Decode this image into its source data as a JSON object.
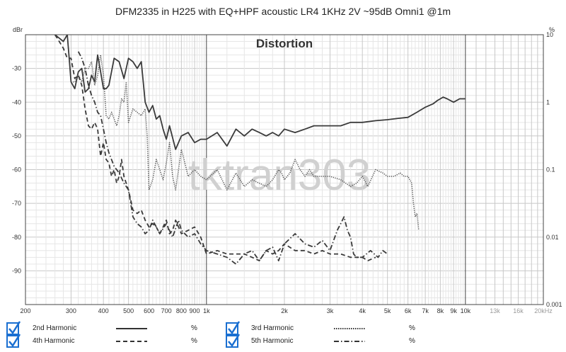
{
  "chart_data": {
    "type": "line",
    "title": "DFM2335 in H225 with EQ+HPF acoustic LR4 1KHz 2V ~95dB Omni1 @1m",
    "inner_title": "Distortion",
    "watermark": "tktran303",
    "xscale": "log",
    "xlim": [
      200,
      20000
    ],
    "ylim_left": [
      -100,
      -20
    ],
    "ylim_right": [
      0.001,
      10
    ],
    "y_left_unit": "dBr",
    "y_right_unit": "%",
    "x_tick_labels": [
      {
        "v": 200,
        "t": "200"
      },
      {
        "v": 300,
        "t": "300"
      },
      {
        "v": 400,
        "t": "400"
      },
      {
        "v": 500,
        "t": "500"
      },
      {
        "v": 600,
        "t": "600"
      },
      {
        "v": 700,
        "t": "700"
      },
      {
        "v": 800,
        "t": "800"
      },
      {
        "v": 900,
        "t": "900"
      },
      {
        "v": 1000,
        "t": "1k"
      },
      {
        "v": 2000,
        "t": "2k"
      },
      {
        "v": 3000,
        "t": "3k"
      },
      {
        "v": 4000,
        "t": "4k"
      },
      {
        "v": 5000,
        "t": "5k"
      },
      {
        "v": 6000,
        "t": "6k"
      },
      {
        "v": 7000,
        "t": "7k"
      },
      {
        "v": 8000,
        "t": "8k"
      },
      {
        "v": 9000,
        "t": "9k"
      },
      {
        "v": 10000,
        "t": "10k"
      },
      {
        "v": 13000,
        "t": "13k",
        "muted": true
      },
      {
        "v": 16000,
        "t": "16k",
        "muted": true
      },
      {
        "v": 20000,
        "t": "20kHz",
        "muted": true
      }
    ],
    "y_left_ticks": [
      {
        "v": -30,
        "t": "-30"
      },
      {
        "v": -40,
        "t": "-40"
      },
      {
        "v": -50,
        "t": "-50"
      },
      {
        "v": -60,
        "t": "-60"
      },
      {
        "v": -70,
        "t": "-70"
      },
      {
        "v": -80,
        "t": "-80"
      },
      {
        "v": -90,
        "t": "-90"
      }
    ],
    "y_right_ticks": [
      {
        "v": 10,
        "t": "10"
      },
      {
        "v": 1,
        "t": "1"
      },
      {
        "v": 0.1,
        "t": "0.1"
      },
      {
        "v": 0.01,
        "t": "0.01"
      },
      {
        "v": 0.001,
        "t": "0.001"
      }
    ],
    "series": [
      {
        "name": "2nd Harmonic",
        "unit": "%",
        "style": "solid",
        "color": "#3a3a3a",
        "x": [
          260,
          270,
          280,
          290,
          295,
          300,
          310,
          320,
          330,
          340,
          350,
          360,
          370,
          380,
          390,
          400,
          410,
          420,
          440,
          460,
          480,
          500,
          520,
          540,
          560,
          580,
          600,
          620,
          640,
          660,
          680,
          700,
          720,
          760,
          800,
          850,
          900,
          950,
          1000,
          1100,
          1200,
          1300,
          1400,
          1500,
          1600,
          1700,
          1800,
          1900,
          2000,
          2200,
          2400,
          2600,
          2800,
          3000,
          3300,
          3600,
          4000,
          4500,
          5000,
          5500,
          6000,
          6500,
          7000,
          7500,
          7800,
          8000,
          8200,
          8500,
          9000,
          9500,
          10000
        ],
        "y": [
          -20,
          -21,
          -22,
          -20,
          -27,
          -34,
          -36,
          -31,
          -30,
          -37,
          -36,
          -32,
          -34,
          -26,
          -31,
          -36,
          -36,
          -35,
          -27,
          -28,
          -33,
          -27,
          -28,
          -30,
          -28,
          -40,
          -43,
          -41,
          -45,
          -44,
          -48,
          -51,
          -47,
          -54,
          -50,
          -49,
          -52,
          -51,
          -51,
          -49,
          -53,
          -48,
          -50,
          -48,
          -49,
          -50,
          -49,
          -50,
          -48,
          -49,
          -48,
          -47,
          -47,
          -47,
          -47,
          -46,
          -46,
          -45.5,
          -45.2,
          -44.8,
          -44.5,
          -43,
          -41.5,
          -40.5,
          -39.5,
          -39,
          -38.5,
          -39,
          -40,
          -39,
          -39
        ]
      },
      {
        "name": "3rd Harmonic",
        "unit": "%",
        "style": "dotted",
        "color": "#555555",
        "x": [
          300,
          310,
          320,
          330,
          340,
          350,
          360,
          370,
          380,
          390,
          400,
          410,
          420,
          430,
          440,
          450,
          460,
          470,
          480,
          490,
          500,
          520,
          540,
          560,
          580,
          590,
          600,
          620,
          640,
          660,
          680,
          700,
          720,
          740,
          760,
          800,
          850,
          900,
          950,
          1000,
          1100,
          1200,
          1300,
          1400,
          1500,
          1600,
          1700,
          1800,
          1900,
          1950,
          2000,
          2100,
          2200,
          2300,
          2400,
          2500,
          2600,
          2700,
          2800,
          3000,
          3300,
          3600,
          3800,
          4000,
          4200,
          4500,
          4800,
          5000,
          5300,
          5600,
          5800,
          6000,
          6200,
          6300,
          6400,
          6500,
          6600
        ],
        "y": [
          -34,
          -34,
          -32,
          -34,
          -30,
          -30,
          -28,
          -35,
          -32,
          -26,
          -32,
          -44,
          -45,
          -43,
          -45,
          -47,
          -44,
          -39,
          -40,
          -34,
          -46,
          -42,
          -43,
          -44,
          -42,
          -50,
          -66,
          -63,
          -57,
          -60,
          -63,
          -58,
          -52,
          -62,
          -66,
          -54,
          -62,
          -60,
          -62,
          -63,
          -60,
          -66,
          -61,
          -65,
          -63,
          -64,
          -65,
          -63,
          -60,
          -61,
          -63,
          -61,
          -57,
          -60,
          -62,
          -60,
          -62,
          -62,
          -62,
          -62,
          -63,
          -65,
          -64,
          -62,
          -65,
          -60,
          -61,
          -62,
          -62,
          -61,
          -62,
          -62,
          -64,
          -70,
          -74,
          -73,
          -78
        ]
      },
      {
        "name": "4th Harmonic",
        "unit": "%",
        "style": "dashed",
        "color": "#3a3a3a",
        "x": [
          260,
          270,
          280,
          290,
          300,
          310,
          320,
          330,
          340,
          350,
          360,
          370,
          380,
          390,
          400,
          410,
          420,
          430,
          440,
          450,
          460,
          470,
          480,
          490,
          500,
          520,
          540,
          560,
          580,
          600,
          620,
          640,
          660,
          680,
          700,
          720,
          740,
          760,
          800,
          850,
          900,
          950,
          1000,
          1100,
          1200,
          1300,
          1400,
          1500,
          1600,
          1700,
          1800,
          1900,
          2000,
          2200,
          2400,
          2600,
          2800,
          3000,
          3300,
          3600,
          4000,
          4200,
          4500
        ],
        "y": [
          -20,
          -22,
          -24,
          -27,
          -27,
          -33,
          -32,
          -35,
          -42,
          -47,
          -48,
          -46,
          -48,
          -56,
          -52,
          -57,
          -58,
          -62,
          -60,
          -64,
          -62,
          -57,
          -62,
          -64,
          -66,
          -72,
          -73,
          -72,
          -75,
          -77,
          -76,
          -77,
          -79,
          -77,
          -75,
          -79,
          -78,
          -75,
          -79,
          -78,
          -77,
          -80,
          -85,
          -84,
          -85,
          -85,
          -85,
          -86,
          -87,
          -84,
          -85,
          -84,
          -82,
          -84,
          -84,
          -85,
          -84,
          -85,
          -85,
          -86,
          -86,
          -87,
          -86
        ]
      },
      {
        "name": "5th Harmonic",
        "unit": "%",
        "style": "dashdot",
        "color": "#3a3a3a",
        "x": [
          320,
          330,
          340,
          350,
          360,
          370,
          380,
          390,
          400,
          410,
          420,
          440,
          460,
          480,
          500,
          520,
          540,
          560,
          580,
          600,
          620,
          640,
          660,
          700,
          740,
          780,
          800,
          850,
          900,
          950,
          1000,
          1100,
          1200,
          1300,
          1400,
          1500,
          1600,
          1700,
          1800,
          1900,
          2000,
          2200,
          2400,
          2600,
          2800,
          3000,
          3200,
          3300,
          3400,
          3500,
          3600,
          3700,
          3800,
          4000,
          4300,
          4600,
          4800,
          5000
        ],
        "y": [
          -25,
          -27,
          -30,
          -35,
          -38,
          -40,
          -43,
          -44,
          -48,
          -52,
          -55,
          -59,
          -61,
          -64,
          -66,
          -74,
          -76,
          -77,
          -79,
          -78,
          -75,
          -77,
          -79,
          -76,
          -80,
          -75,
          -78,
          -80,
          -79,
          -82,
          -84,
          -85,
          -86,
          -88,
          -85,
          -84,
          -87,
          -84,
          -83,
          -87,
          -82,
          -79,
          -82,
          -83,
          -81,
          -84,
          -78,
          -76,
          -74,
          -78,
          -80,
          -85,
          -86,
          -86,
          -84,
          -86,
          -84,
          -85
        ]
      }
    ]
  },
  "legend": [
    {
      "label": "2nd Harmonic",
      "unit": "%",
      "checked": true
    },
    {
      "label": "3rd Harmonic",
      "unit": "%",
      "checked": true
    },
    {
      "label": "4th Harmonic",
      "unit": "%",
      "checked": true
    },
    {
      "label": "5th Harmonic",
      "unit": "%",
      "checked": true
    }
  ],
  "colors": {
    "grid": "#e6e6e6",
    "grid_major": "#c8c8c8",
    "decade": "#444444",
    "check": "#1a6fd1"
  }
}
